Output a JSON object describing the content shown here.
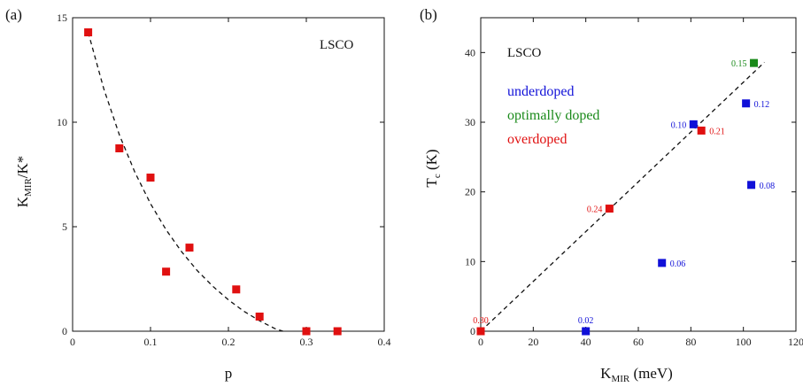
{
  "colors": {
    "red": "#e01010",
    "blue": "#1010d8",
    "green": "#1a8a1a",
    "axis": "#111111"
  },
  "chart_data": [
    {
      "type": "scatter",
      "panel_label": "(a)",
      "annotation": "LSCO",
      "xlabel": "p",
      "ylabel_main": "K",
      "ylabel_sub": "MIR",
      "ylabel_rest": "/K*",
      "xlim": [
        0,
        0.4
      ],
      "ylim": [
        0,
        15
      ],
      "xticks": [
        0,
        0.1,
        0.2,
        0.3,
        0.4
      ],
      "xtick_labels": [
        "0",
        "0.1",
        "0.2",
        "0.3",
        "0.4"
      ],
      "yticks": [
        0,
        5,
        10,
        15
      ],
      "ytick_labels": [
        "0",
        "5",
        "10",
        "15"
      ],
      "points": [
        {
          "x": 0.02,
          "y": 14.3
        },
        {
          "x": 0.06,
          "y": 8.75
        },
        {
          "x": 0.1,
          "y": 7.35
        },
        {
          "x": 0.12,
          "y": 2.85
        },
        {
          "x": 0.15,
          "y": 4.0
        },
        {
          "x": 0.21,
          "y": 2.0
        },
        {
          "x": 0.24,
          "y": 0.7
        },
        {
          "x": 0.3,
          "y": 0.0
        },
        {
          "x": 0.34,
          "y": 0.0
        }
      ],
      "fit_curve": {
        "style": "dashed",
        "x": [
          0.02,
          0.04,
          0.06,
          0.08,
          0.1,
          0.12,
          0.14,
          0.16,
          0.18,
          0.2,
          0.22,
          0.24,
          0.26,
          0.27
        ],
        "y": [
          14.3,
          11.6,
          9.4,
          7.6,
          6.1,
          4.85,
          3.8,
          2.9,
          2.15,
          1.5,
          0.95,
          0.5,
          0.12,
          0.0
        ]
      }
    },
    {
      "type": "scatter",
      "panel_label": "(b)",
      "annotation": "LSCO",
      "xlabel_main": "K",
      "xlabel_sub": "MIR",
      "xlabel_rest": " (meV)",
      "ylabel_main": "T",
      "ylabel_sub": "c",
      "ylabel_rest": " (K)",
      "xlim": [
        0,
        120
      ],
      "ylim": [
        0,
        45
      ],
      "xticks": [
        0,
        20,
        40,
        60,
        80,
        100,
        120
      ],
      "xtick_labels": [
        "0",
        "20",
        "40",
        "60",
        "80",
        "100",
        "120"
      ],
      "yticks": [
        0,
        10,
        20,
        30,
        40
      ],
      "ytick_labels": [
        "0",
        "10",
        "20",
        "30",
        "40"
      ],
      "legend": [
        {
          "label": "underdoped",
          "color": "blue"
        },
        {
          "label": "optimally doped",
          "color": "green"
        },
        {
          "label": "overdoped",
          "color": "red"
        }
      ],
      "points": [
        {
          "x": 40,
          "y": 0,
          "label": "0.02",
          "group": "blue",
          "label_pos": "above"
        },
        {
          "x": 69,
          "y": 9.8,
          "label": "0.06",
          "group": "blue",
          "label_pos": "right"
        },
        {
          "x": 103,
          "y": 21,
          "label": "0.08",
          "group": "blue",
          "label_pos": "right"
        },
        {
          "x": 81,
          "y": 29.7,
          "label": "0.10",
          "group": "blue",
          "label_pos": "left"
        },
        {
          "x": 101,
          "y": 32.7,
          "label": "0.12",
          "group": "blue",
          "label_pos": "right"
        },
        {
          "x": 104,
          "y": 38.5,
          "label": "0.15",
          "group": "green",
          "label_pos": "left"
        },
        {
          "x": 84,
          "y": 28.8,
          "label": "0.21",
          "group": "red",
          "label_pos": "right"
        },
        {
          "x": 49,
          "y": 17.6,
          "label": "0.24",
          "group": "red",
          "label_pos": "left"
        },
        {
          "x": 0,
          "y": 0,
          "label": "0.30",
          "group": "red",
          "label_pos": "above"
        }
      ],
      "fit_line": {
        "style": "dashed",
        "x": [
          0,
          108
        ],
        "y": [
          0,
          38.6
        ]
      }
    }
  ]
}
